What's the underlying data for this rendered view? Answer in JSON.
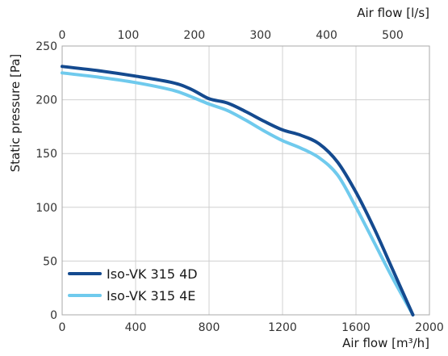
{
  "chart_data": {
    "type": "line",
    "xlabel": "Air flow [m³/h]",
    "x2label": "Air flow [l/s]",
    "ylabel": "Static pressure [Pa]",
    "xlim": [
      0,
      2000
    ],
    "x2lim": [
      0,
      555.6
    ],
    "ylim": [
      0,
      250
    ],
    "x_ticks": [
      "0",
      "400",
      "800",
      "1200",
      "1600",
      "2000"
    ],
    "x2_ticks": [
      "0",
      "100",
      "200",
      "300",
      "400",
      "500"
    ],
    "y_ticks": [
      "0",
      "50",
      "100",
      "150",
      "200",
      "250"
    ],
    "grid": true,
    "legend_position": "bottom-left",
    "series": [
      {
        "name": "Iso-VK 315 4D",
        "color": "#144a8f",
        "x": [
          0,
          200,
          400,
          600,
          700,
          800,
          900,
          1000,
          1100,
          1200,
          1300,
          1400,
          1500,
          1600,
          1700,
          1800,
          1910
        ],
        "y": [
          231,
          227,
          222,
          216,
          210,
          201,
          197,
          189,
          180,
          172,
          167,
          159,
          142,
          114,
          80,
          42,
          0
        ]
      },
      {
        "name": "Iso-VK 315 4E",
        "color": "#6fcaed",
        "x": [
          0,
          200,
          400,
          600,
          700,
          800,
          900,
          1000,
          1100,
          1200,
          1300,
          1400,
          1500,
          1600,
          1700,
          1800,
          1910
        ],
        "y": [
          225,
          221,
          216,
          209,
          203,
          196,
          190,
          181,
          171,
          162,
          155,
          146,
          130,
          100,
          67,
          34,
          0
        ]
      }
    ]
  }
}
